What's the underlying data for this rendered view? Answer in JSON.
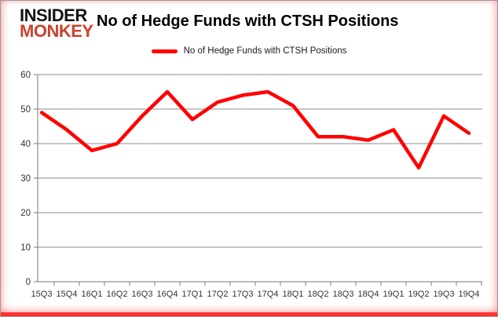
{
  "logo": {
    "line1": "INSIDER",
    "line2": "MONKEY"
  },
  "header": {
    "title": "No of Hedge Funds with CTSH Positions"
  },
  "legend": {
    "label": "No of Hedge Funds with CTSH Positions"
  },
  "colors": {
    "line": "#ff0000",
    "grid": "#8c8c8c",
    "axis_text": "#333333",
    "logo_black": "#141414",
    "logo_red": "#c8432f",
    "frame_glow": "#ff3c3c"
  },
  "chart_data": {
    "type": "line",
    "title": "No of Hedge Funds with CTSH Positions",
    "series": [
      {
        "name": "No of Hedge Funds with CTSH Positions",
        "color": "#ff0000",
        "values": [
          49,
          44,
          38,
          40,
          48,
          55,
          47,
          52,
          54,
          55,
          51,
          42,
          42,
          41,
          44,
          33,
          48,
          43
        ]
      }
    ],
    "categories": [
      "15Q3",
      "15Q4",
      "16Q1",
      "16Q2",
      "16Q3",
      "16Q4",
      "17Q1",
      "17Q2",
      "17Q3",
      "17Q4",
      "18Q1",
      "18Q2",
      "18Q3",
      "18Q4",
      "19Q1",
      "19Q2",
      "19Q3",
      "19Q4"
    ],
    "xlabel": "",
    "ylabel": "",
    "ylim": [
      0,
      60
    ],
    "yticks": [
      0,
      10,
      20,
      30,
      40,
      50,
      60
    ],
    "grid": true,
    "legend_position": "top-center"
  }
}
